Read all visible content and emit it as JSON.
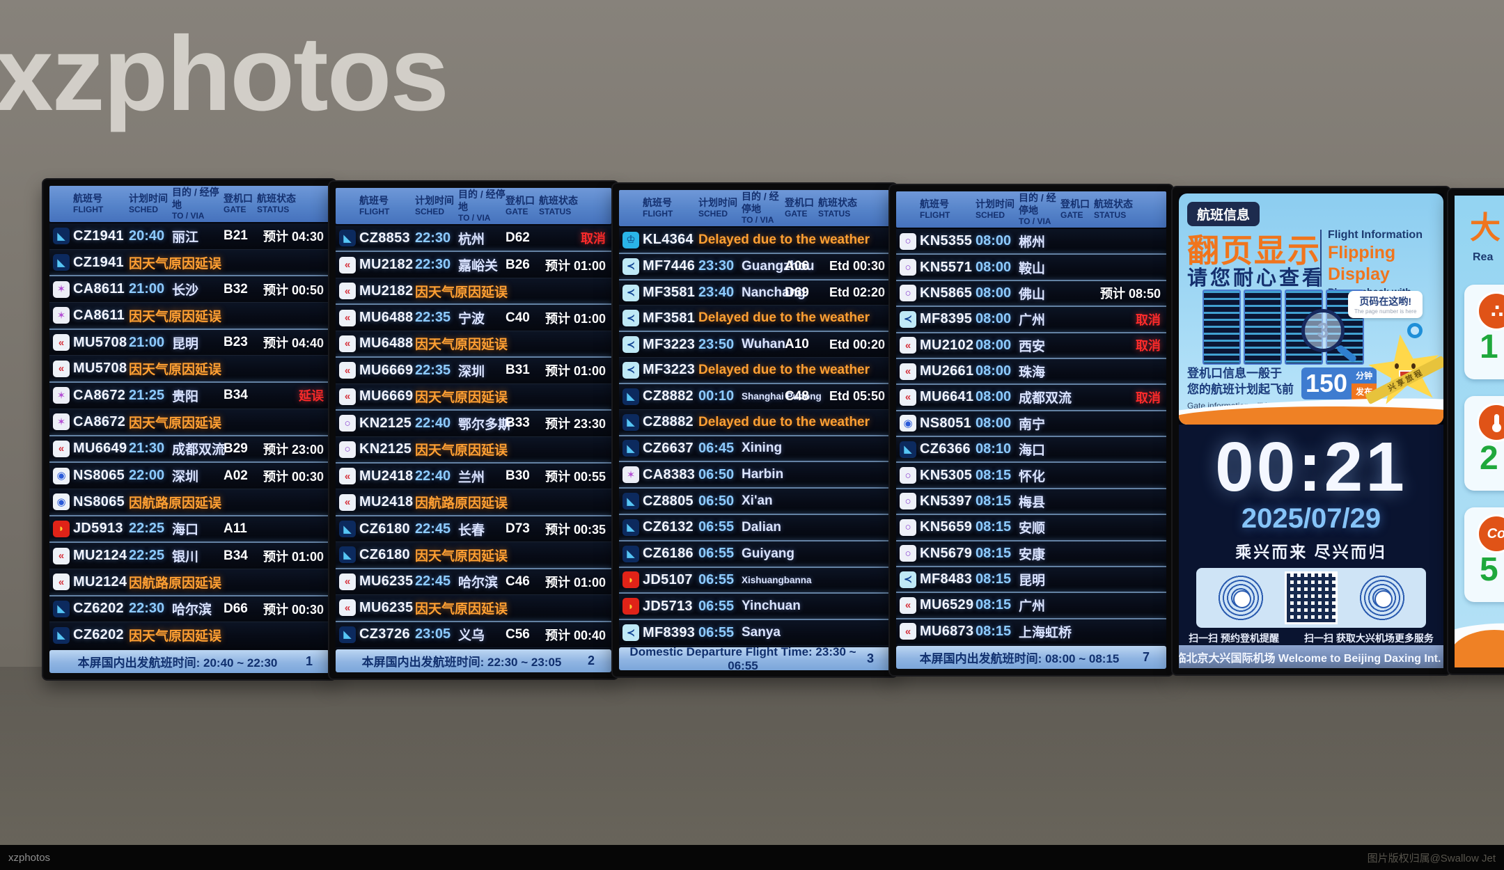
{
  "watermark": "xzphotos",
  "bottom_bar": {
    "left": "xzphotos",
    "right": "图片版权归属@Swallow Jet"
  },
  "colors": {
    "header_blue": "#5583c9",
    "footer_blue": "#8fb4e2",
    "time_blue": "#8ecbff",
    "delay_orange": "#ffa033",
    "cancel_red": "#ff2b2b",
    "ad_orange": "#f0751d",
    "clock_bg": "#0a1430",
    "date_blue": "#86c4f8",
    "aq_green": "#1fa83c"
  },
  "board_header": {
    "flight_cn": "航班号",
    "flight_en": "FLIGHT",
    "sched_cn": "计划时间",
    "sched_en": "SCHED",
    "to_cn": "目的 / 经停地",
    "to_en": "TO / VIA",
    "gate_cn": "登机口",
    "gate_en": "GATE",
    "status_cn": "航班状态",
    "status_en": "STATUS"
  },
  "airlines": {
    "CZ": {
      "name": "china-southern",
      "glyph": "◣"
    },
    "CA": {
      "name": "air-china",
      "glyph": "✶"
    },
    "MU": {
      "name": "china-eastern",
      "glyph": "«"
    },
    "KN": {
      "name": "china-united",
      "glyph": "○"
    },
    "NS": {
      "name": "hebei-airlines",
      "glyph": "◉"
    },
    "JD": {
      "name": "capital-airlines",
      "glyph": "◗"
    },
    "MF": {
      "name": "xiamen-air",
      "glyph": "≺"
    },
    "KL": {
      "name": "klm",
      "glyph": "♔"
    }
  },
  "boards": [
    {
      "footer_text": "本屏国内出发航班时间: 20:40 ~ 22:30",
      "page": "1",
      "rows": [
        {
          "airline": "CZ",
          "flight": "CZ1941",
          "time": "20:40",
          "dest": "丽江",
          "gate": "B21",
          "status": "预计 04:30"
        },
        {
          "airline": "CZ",
          "flight": "CZ1941",
          "remark": "因天气原因延误"
        },
        {
          "airline": "CA",
          "flight": "CA8611",
          "time": "21:00",
          "dest": "长沙",
          "gate": "B32",
          "status": "预计 00:50"
        },
        {
          "airline": "CA",
          "flight": "CA8611",
          "remark": "因天气原因延误"
        },
        {
          "airline": "MU",
          "flight": "MU5708",
          "time": "21:00",
          "dest": "昆明",
          "gate": "B23",
          "status": "预计 04:40"
        },
        {
          "airline": "MU",
          "flight": "MU5708",
          "remark": "因天气原因延误"
        },
        {
          "airline": "CA",
          "flight": "CA8672",
          "time": "21:25",
          "dest": "贵阳",
          "gate": "B34",
          "status": "延误",
          "red": true
        },
        {
          "airline": "CA",
          "flight": "CA8672",
          "remark": "因天气原因延误"
        },
        {
          "airline": "MU",
          "flight": "MU6649",
          "time": "21:30",
          "dest": "成都双流",
          "gate": "B29",
          "status": "预计 23:00"
        },
        {
          "airline": "NS",
          "flight": "NS8065",
          "time": "22:00",
          "dest": "深圳",
          "gate": "A02",
          "status": "预计 00:30"
        },
        {
          "airline": "NS",
          "flight": "NS8065",
          "remark": "因航路原因延误"
        },
        {
          "airline": "JD",
          "flight": "JD5913",
          "time": "22:25",
          "dest": "海口",
          "gate": "A11",
          "status": ""
        },
        {
          "airline": "MU",
          "flight": "MU2124",
          "time": "22:25",
          "dest": "银川",
          "gate": "B34",
          "status": "预计 01:00"
        },
        {
          "airline": "MU",
          "flight": "MU2124",
          "remark": "因航路原因延误"
        },
        {
          "airline": "CZ",
          "flight": "CZ6202",
          "time": "22:30",
          "dest": "哈尔滨",
          "gate": "D66",
          "status": "预计 00:30"
        },
        {
          "airline": "CZ",
          "flight": "CZ6202",
          "remark": "因天气原因延误"
        }
      ]
    },
    {
      "footer_text": "本屏国内出发航班时间: 22:30 ~ 23:05",
      "page": "2",
      "rows": [
        {
          "airline": "CZ",
          "flight": "CZ8853",
          "time": "22:30",
          "dest": "杭州",
          "gate": "D62",
          "status": "取消",
          "red": true
        },
        {
          "airline": "MU",
          "flight": "MU2182",
          "time": "22:30",
          "dest": "嘉峪关",
          "gate": "B26",
          "status": "预计 01:00"
        },
        {
          "airline": "MU",
          "flight": "MU2182",
          "remark": "因天气原因延误"
        },
        {
          "airline": "MU",
          "flight": "MU6488",
          "time": "22:35",
          "dest": "宁波",
          "gate": "C40",
          "status": "预计 01:00"
        },
        {
          "airline": "MU",
          "flight": "MU6488",
          "remark": "因天气原因延误"
        },
        {
          "airline": "MU",
          "flight": "MU6669",
          "time": "22:35",
          "dest": "深圳",
          "gate": "B31",
          "status": "预计 01:00"
        },
        {
          "airline": "MU",
          "flight": "MU6669",
          "remark": "因天气原因延误"
        },
        {
          "airline": "KN",
          "flight": "KN2125",
          "time": "22:40",
          "dest": "鄂尔多斯",
          "gate": "B33",
          "status": "预计 23:30"
        },
        {
          "airline": "KN",
          "flight": "KN2125",
          "remark": "因天气原因延误"
        },
        {
          "airline": "MU",
          "flight": "MU2418",
          "time": "22:40",
          "dest": "兰州",
          "gate": "B30",
          "status": "预计 00:55"
        },
        {
          "airline": "MU",
          "flight": "MU2418",
          "remark": "因航路原因延误"
        },
        {
          "airline": "CZ",
          "flight": "CZ6180",
          "time": "22:45",
          "dest": "长春",
          "gate": "D73",
          "status": "预计 00:35"
        },
        {
          "airline": "CZ",
          "flight": "CZ6180",
          "remark": "因天气原因延误"
        },
        {
          "airline": "MU",
          "flight": "MU6235",
          "time": "22:45",
          "dest": "哈尔滨",
          "gate": "C46",
          "status": "预计 01:00"
        },
        {
          "airline": "MU",
          "flight": "MU6235",
          "remark": "因天气原因延误"
        },
        {
          "airline": "CZ",
          "flight": "CZ3726",
          "time": "23:05",
          "dest": "义乌",
          "gate": "C56",
          "status": "预计 00:40"
        }
      ]
    },
    {
      "footer_text": "Domestic Departure Flight Time: 23:30 ~ 06:55",
      "page": "3",
      "rows": [
        {
          "airline": "KL",
          "flight": "KL4364",
          "remark": "Delayed due to the weather"
        },
        {
          "airline": "MF",
          "flight": "MF7446",
          "time": "23:30",
          "dest": "Guangzhou",
          "gate": "A06",
          "status": "Etd 00:30"
        },
        {
          "airline": "MF",
          "flight": "MF3581",
          "time": "23:40",
          "dest": "Nanchang",
          "gate": "D69",
          "status": "Etd 02:20"
        },
        {
          "airline": "MF",
          "flight": "MF3581",
          "remark": "Delayed due to the weather"
        },
        {
          "airline": "MF",
          "flight": "MF3223",
          "time": "23:50",
          "dest": "Wuhan",
          "gate": "A10",
          "status": "Etd 00:20"
        },
        {
          "airline": "MF",
          "flight": "MF3223",
          "remark": "Delayed due to the weather"
        },
        {
          "airline": "CZ",
          "flight": "CZ8882",
          "time": "00:10",
          "dest": "Shanghai Pudong",
          "small": true,
          "gate": "C48",
          "status": "Etd 05:50"
        },
        {
          "airline": "CZ",
          "flight": "CZ8882",
          "remark": "Delayed due to the weather"
        },
        {
          "airline": "CZ",
          "flight": "CZ6637",
          "time": "06:45",
          "dest": "Xining",
          "gate": "",
          "status": ""
        },
        {
          "airline": "CA",
          "flight": "CA8383",
          "time": "06:50",
          "dest": "Harbin",
          "gate": "",
          "status": ""
        },
        {
          "airline": "CZ",
          "flight": "CZ8805",
          "time": "06:50",
          "dest": "Xi'an",
          "gate": "",
          "status": ""
        },
        {
          "airline": "CZ",
          "flight": "CZ6132",
          "time": "06:55",
          "dest": "Dalian",
          "gate": "",
          "status": ""
        },
        {
          "airline": "CZ",
          "flight": "CZ6186",
          "time": "06:55",
          "dest": "Guiyang",
          "gate": "",
          "status": ""
        },
        {
          "airline": "JD",
          "flight": "JD5107",
          "time": "06:55",
          "dest": "Xishuangbanna",
          "small": true,
          "gate": "",
          "status": ""
        },
        {
          "airline": "JD",
          "flight": "JD5713",
          "time": "06:55",
          "dest": "Yinchuan",
          "gate": "",
          "status": ""
        },
        {
          "airline": "MF",
          "flight": "MF8393",
          "time": "06:55",
          "dest": "Sanya",
          "gate": "",
          "status": ""
        }
      ]
    },
    {
      "footer_text": "本屏国内出发航班时间: 08:00 ~ 08:15",
      "page": "7",
      "rows": [
        {
          "airline": "KN",
          "flight": "KN5355",
          "time": "08:00",
          "dest": "郴州",
          "gate": "",
          "status": ""
        },
        {
          "airline": "KN",
          "flight": "KN5571",
          "time": "08:00",
          "dest": "鞍山",
          "gate": "",
          "status": ""
        },
        {
          "airline": "KN",
          "flight": "KN5865",
          "time": "08:00",
          "dest": "佛山",
          "gate": "",
          "status": "预计 08:50"
        },
        {
          "airline": "MF",
          "flight": "MF8395",
          "time": "08:00",
          "dest": "广州",
          "gate": "",
          "status": "取消",
          "red": true
        },
        {
          "airline": "MU",
          "flight": "MU2102",
          "time": "08:00",
          "dest": "西安",
          "gate": "",
          "status": "取消",
          "red": true
        },
        {
          "airline": "MU",
          "flight": "MU2661",
          "time": "08:00",
          "dest": "珠海",
          "gate": "",
          "status": ""
        },
        {
          "airline": "MU",
          "flight": "MU6641",
          "time": "08:00",
          "dest": "成都双流",
          "gate": "",
          "status": "取消",
          "red": true
        },
        {
          "airline": "NS",
          "flight": "NS8051",
          "time": "08:00",
          "dest": "南宁",
          "gate": "",
          "status": ""
        },
        {
          "airline": "CZ",
          "flight": "CZ6366",
          "time": "08:10",
          "dest": "海口",
          "gate": "",
          "status": ""
        },
        {
          "airline": "KN",
          "flight": "KN5305",
          "time": "08:15",
          "dest": "怀化",
          "gate": "",
          "status": ""
        },
        {
          "airline": "KN",
          "flight": "KN5397",
          "time": "08:15",
          "dest": "梅县",
          "gate": "",
          "status": ""
        },
        {
          "airline": "KN",
          "flight": "KN5659",
          "time": "08:15",
          "dest": "安顺",
          "gate": "",
          "status": ""
        },
        {
          "airline": "KN",
          "flight": "KN5679",
          "time": "08:15",
          "dest": "安康",
          "gate": "",
          "status": ""
        },
        {
          "airline": "MF",
          "flight": "MF8483",
          "time": "08:15",
          "dest": "昆明",
          "gate": "",
          "status": ""
        },
        {
          "airline": "MU",
          "flight": "MU6529",
          "time": "08:15",
          "dest": "广州",
          "gate": "",
          "status": ""
        },
        {
          "airline": "MU",
          "flight": "MU6873",
          "time": "08:15",
          "dest": "上海虹桥",
          "gate": "",
          "status": ""
        }
      ]
    }
  ],
  "info_screen": {
    "badge": "航班信息",
    "title_cn": "翻页显示",
    "en_label": "Flight Information",
    "en_title": "Flipping Display",
    "en_sub": "Please check with patience",
    "subtitle_cn": "请您耐心查看",
    "magnifier_number": "3",
    "callout_cn": "页码在这哟!",
    "callout_en": "The page number is here",
    "gate_cn_1": "登机口信息一般于",
    "gate_cn_2": "您的航班计划起飞前",
    "gate_minutes": "150",
    "gate_unit_1": "分钟",
    "gate_unit_2": "发布",
    "gate_en_1": "Gate information will be available ",
    "gate_en_min": "150",
    "gate_en_2": " minutes before your flight.",
    "mascot_sash": "兴享旅程",
    "clock_time": "00:21",
    "clock_date": "2025/07/29",
    "slogan": "乘兴而来 尽兴而归",
    "qr_caption_left": "扫一扫 预约登机提醒",
    "qr_caption_right": "扫一扫 获取大兴机场更多服务",
    "footer": "欢迎光临北京大兴国际机场 Welcome to Beijing Daxing Int. Airport"
  },
  "side_screen": {
    "partial_title": "大",
    "partial_text": "Rea",
    "cards": [
      {
        "icon": "aqi-bubbles-icon",
        "glyph": "∴",
        "value": "1"
      },
      {
        "icon": "thermometer-icon",
        "glyph": "",
        "value": "2"
      },
      {
        "icon": "co-gas-icon",
        "glyph": "Co",
        "value": "5"
      }
    ]
  }
}
